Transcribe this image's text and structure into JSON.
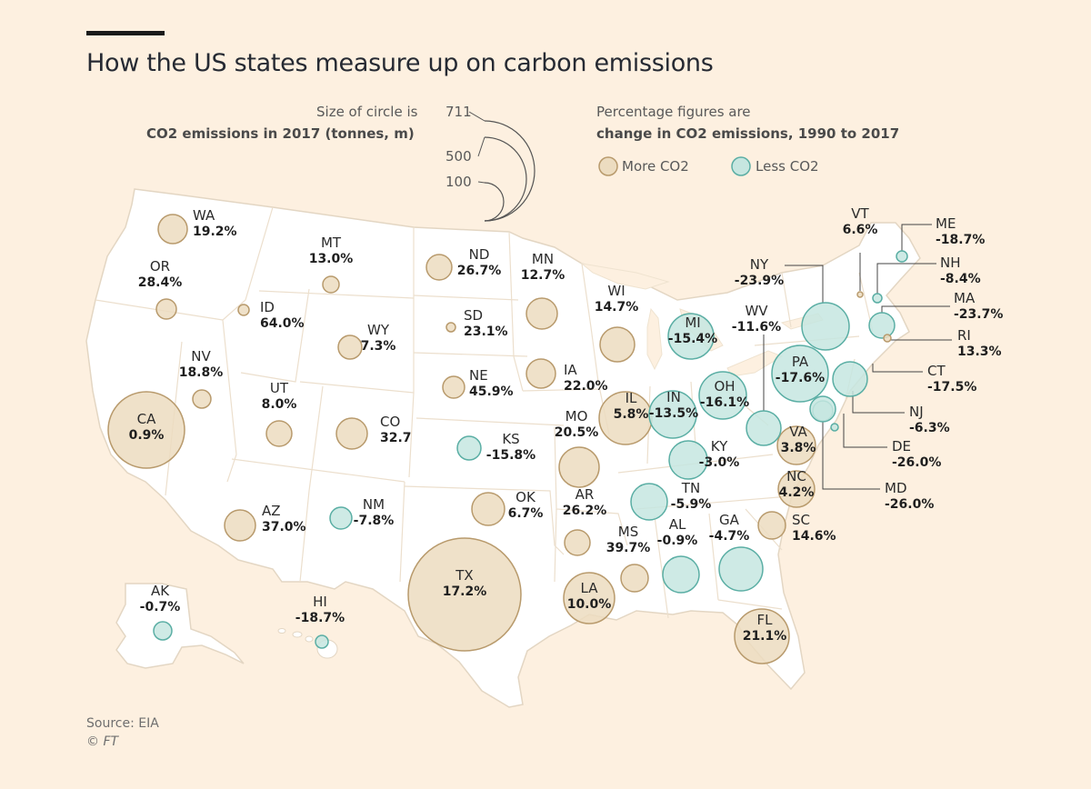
{
  "title": "How the US states measure up on carbon emissions",
  "legend": {
    "size_line1": "Size of circle is",
    "size_line2": "CO2 emissions in 2017 (tonnes, m)",
    "size_refs": [
      "711",
      "500",
      "100"
    ],
    "pct_line1": "Percentage figures are",
    "pct_line2": "change in CO2 emissions, 1990 to 2017",
    "more_label": "More CO2",
    "less_label": "Less CO2"
  },
  "colors": {
    "more_fill": "#ecdcc0",
    "more_stroke": "#b89a6c",
    "less_fill": "#c6e6e0",
    "less_stroke": "#5aaea4",
    "land": "#ffffff",
    "border": "#e8dccb",
    "background": "#fdf0e0"
  },
  "source": "Source: EIA",
  "credit": "© FT",
  "states": [
    {
      "code": "WA",
      "change": "19.2%",
      "dir": "more"
    },
    {
      "code": "OR",
      "change": "28.4%",
      "dir": "more"
    },
    {
      "code": "CA",
      "change": "0.9%",
      "dir": "more"
    },
    {
      "code": "NV",
      "change": "18.8%",
      "dir": "more"
    },
    {
      "code": "ID",
      "change": "64.0%",
      "dir": "more"
    },
    {
      "code": "MT",
      "change": "13.0%",
      "dir": "more"
    },
    {
      "code": "WY",
      "change": "7.3%",
      "dir": "more"
    },
    {
      "code": "UT",
      "change": "8.0%",
      "dir": "more"
    },
    {
      "code": "CO",
      "change": "32.7",
      "dir": "more"
    },
    {
      "code": "AZ",
      "change": "37.0%",
      "dir": "more"
    },
    {
      "code": "NM",
      "change": "-7.8%",
      "dir": "less"
    },
    {
      "code": "ND",
      "change": "26.7%",
      "dir": "more"
    },
    {
      "code": "SD",
      "change": "23.1%",
      "dir": "more"
    },
    {
      "code": "NE",
      "change": "45.9%",
      "dir": "more"
    },
    {
      "code": "KS",
      "change": "-15.8%",
      "dir": "less"
    },
    {
      "code": "OK",
      "change": "6.7%",
      "dir": "more"
    },
    {
      "code": "TX",
      "change": "17.2%",
      "dir": "more"
    },
    {
      "code": "MN",
      "change": "12.7%",
      "dir": "more"
    },
    {
      "code": "IA",
      "change": "22.0%",
      "dir": "more"
    },
    {
      "code": "MO",
      "change": "20.5%",
      "dir": "more"
    },
    {
      "code": "AR",
      "change": "26.2%",
      "dir": "more"
    },
    {
      "code": "LA",
      "change": "10.0%",
      "dir": "more"
    },
    {
      "code": "WI",
      "change": "14.7%",
      "dir": "more"
    },
    {
      "code": "IL",
      "change": "5.8%",
      "dir": "more"
    },
    {
      "code": "MI",
      "change": "-15.4%",
      "dir": "less"
    },
    {
      "code": "IN",
      "change": "-13.5%",
      "dir": "less"
    },
    {
      "code": "OH",
      "change": "-16.1%",
      "dir": "less"
    },
    {
      "code": "KY",
      "change": "-3.0%",
      "dir": "less"
    },
    {
      "code": "TN",
      "change": "-5.9%",
      "dir": "less"
    },
    {
      "code": "MS",
      "change": "39.7%",
      "dir": "more"
    },
    {
      "code": "AL",
      "change": "-0.9%",
      "dir": "less"
    },
    {
      "code": "GA",
      "change": "-4.7%",
      "dir": "less"
    },
    {
      "code": "FL",
      "change": "21.1%",
      "dir": "more"
    },
    {
      "code": "SC",
      "change": "14.6%",
      "dir": "more"
    },
    {
      "code": "NC",
      "change": "4.2%",
      "dir": "more"
    },
    {
      "code": "VA",
      "change": "3.8%",
      "dir": "more"
    },
    {
      "code": "WV",
      "change": "-11.6%",
      "dir": "less"
    },
    {
      "code": "PA",
      "change": "-17.6%",
      "dir": "less"
    },
    {
      "code": "NY",
      "change": "-23.9%",
      "dir": "less"
    },
    {
      "code": "VT",
      "change": "6.6%",
      "dir": "more"
    },
    {
      "code": "ME",
      "change": "-18.7%",
      "dir": "less"
    },
    {
      "code": "NH",
      "change": "-8.4%",
      "dir": "less"
    },
    {
      "code": "MA",
      "change": "-23.7%",
      "dir": "less"
    },
    {
      "code": "RI",
      "change": "13.3%",
      "dir": "more"
    },
    {
      "code": "CT",
      "change": "-17.5%",
      "dir": "less"
    },
    {
      "code": "NJ",
      "change": "-6.3%",
      "dir": "less"
    },
    {
      "code": "DE",
      "change": "-26.0%",
      "dir": "less"
    },
    {
      "code": "MD",
      "change": "-26.0%",
      "dir": "less"
    },
    {
      "code": "AK",
      "change": "-0.7%",
      "dir": "less"
    },
    {
      "code": "HI",
      "change": "-18.7%",
      "dir": "less"
    }
  ]
}
